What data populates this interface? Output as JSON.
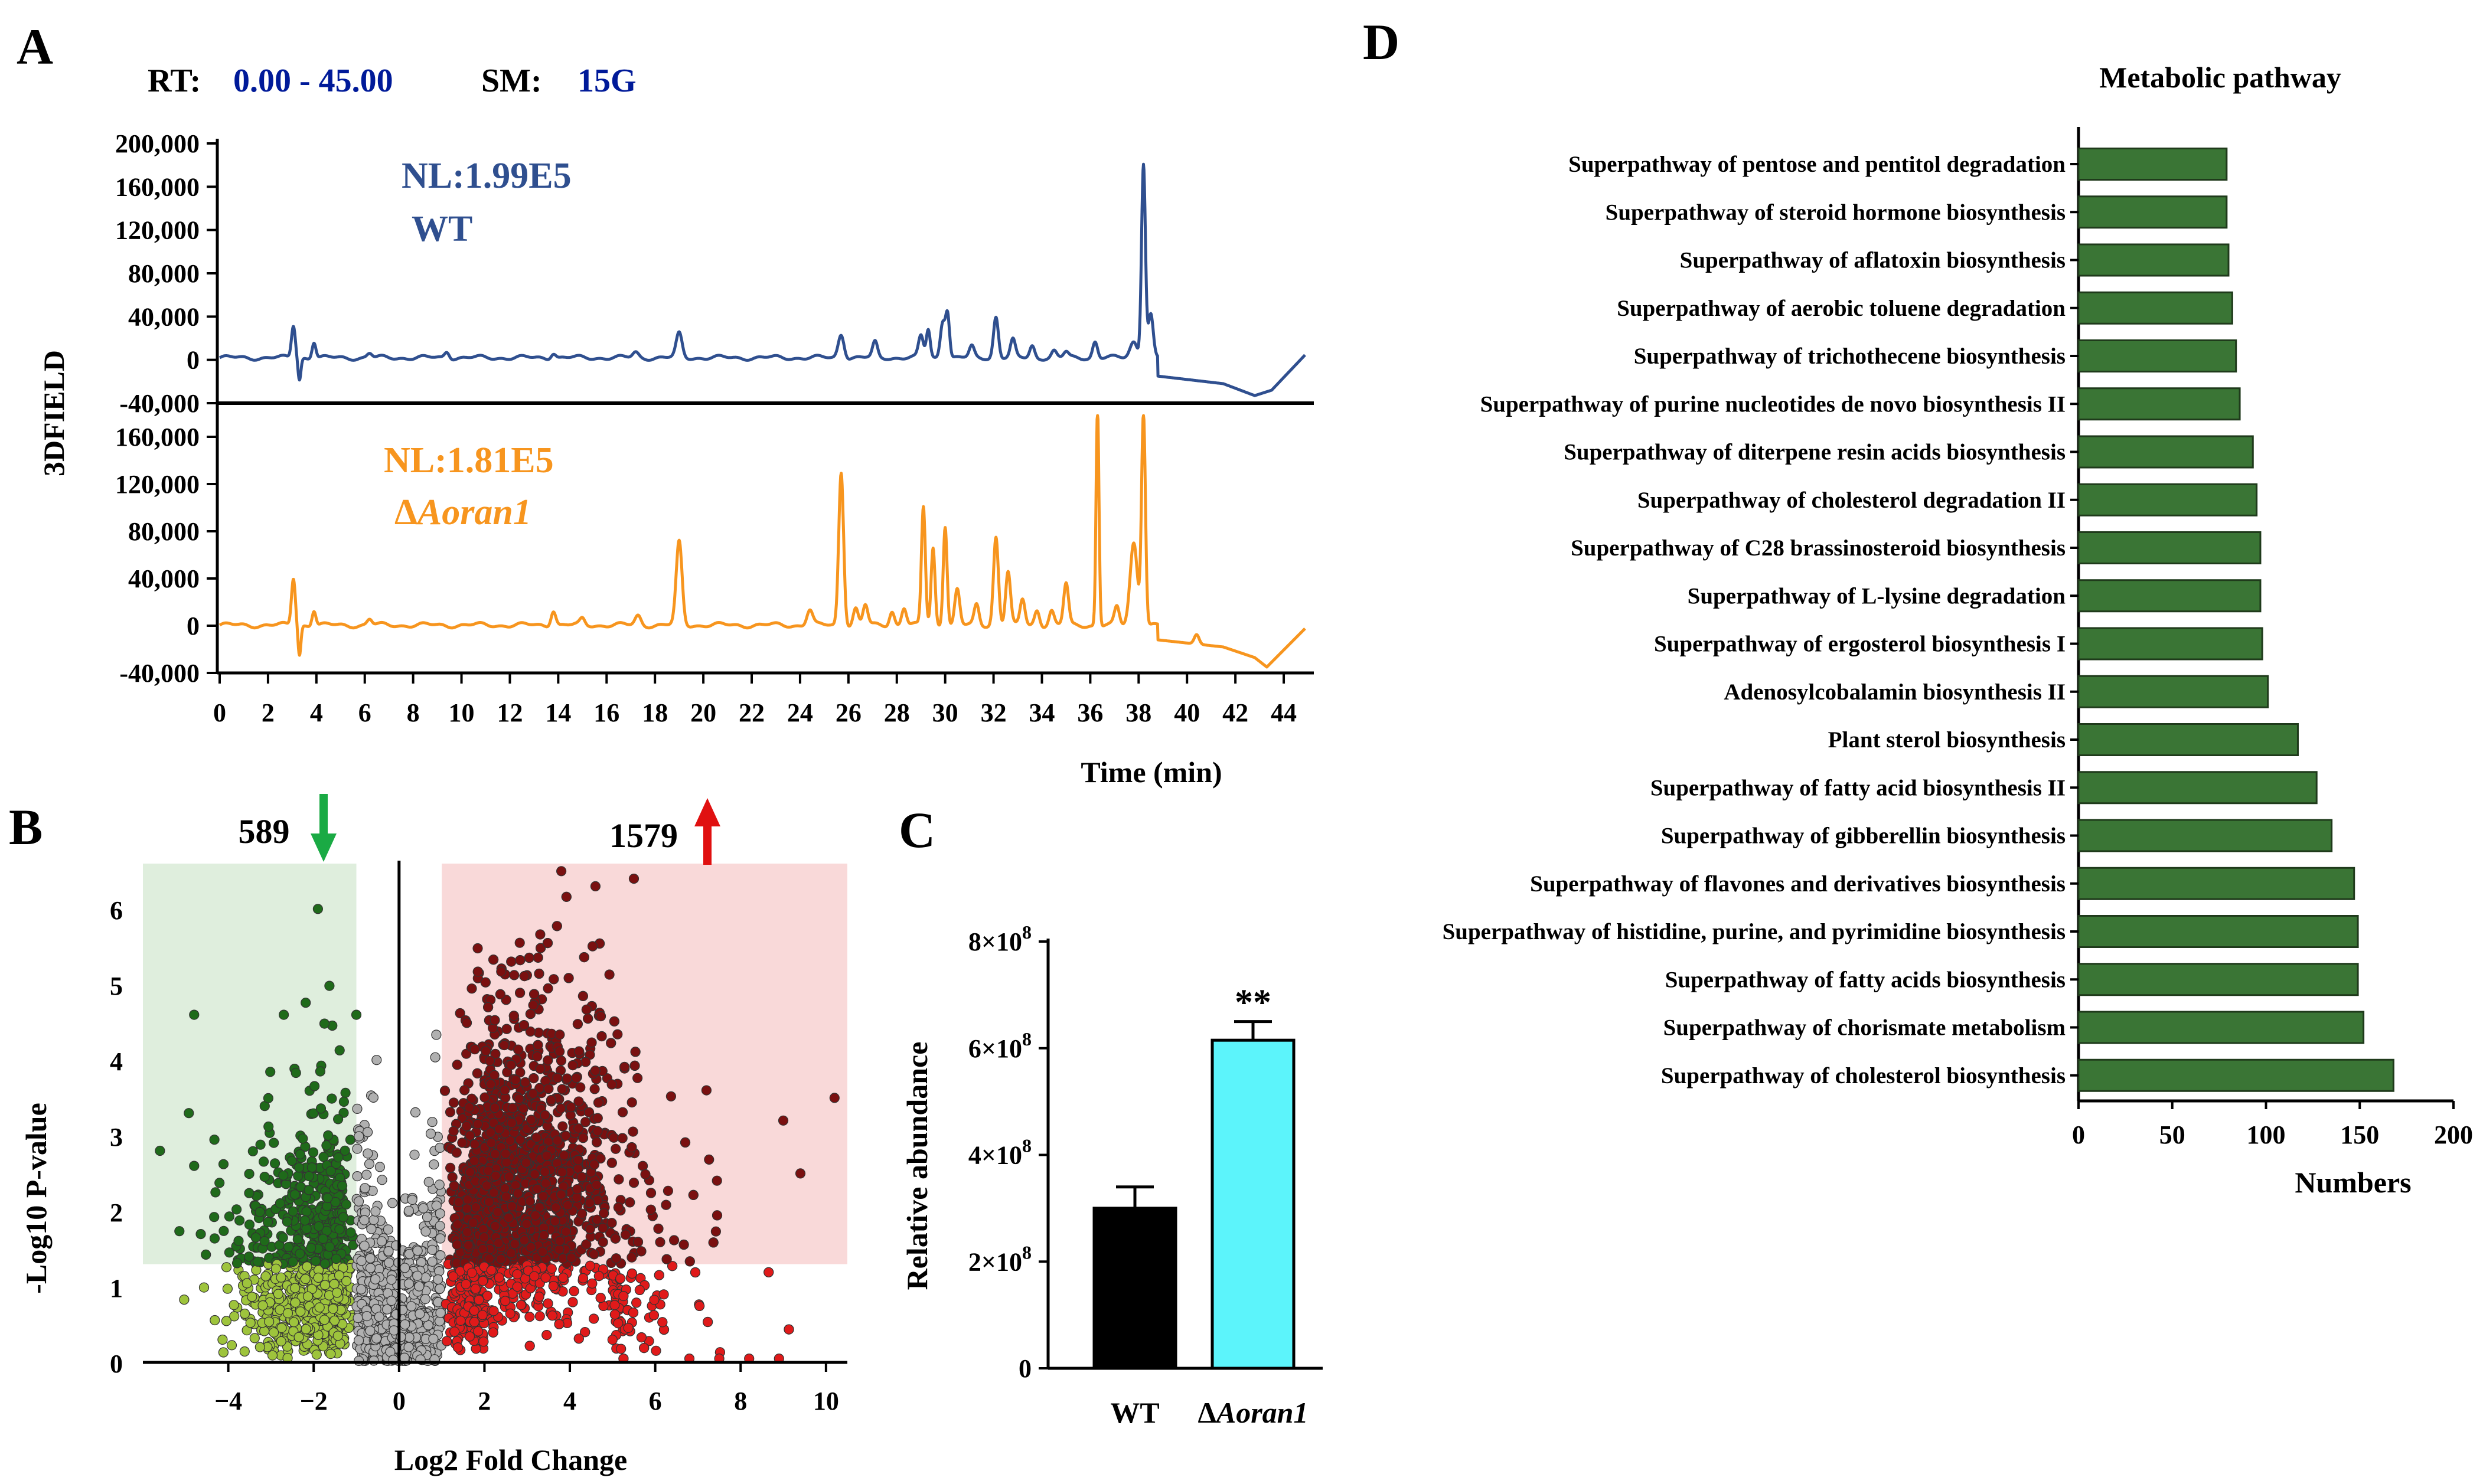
{
  "panel_labels": {
    "a": "A",
    "b": "B",
    "c": "C",
    "d": "D"
  },
  "header": {
    "rt_label": "RT:",
    "rt_value": "0.00 - 45.00",
    "sm_label": "SM:",
    "sm_value": "15G"
  },
  "colors": {
    "wt_trace": "#2f4f8f",
    "mutant_trace": "#f7951e",
    "header_value": "#001a99",
    "up_dark": "#7a1010",
    "up_light": "#e01a1a",
    "down_dark": "#1f6a1a",
    "down_light": "#9ec43c",
    "ns": "#b0b0b0",
    "bar_wt": "#000000",
    "bar_mut": "#5cf4fb",
    "pathway_bar": "#3a7535",
    "up_zone": "#f9d9d9",
    "down_zone": "#dfeedd"
  },
  "chart_data": [
    {
      "id": "A",
      "type": "line",
      "ylabel": "3DFIELD",
      "xlabel": "Time (min)",
      "xlim": [
        0,
        45
      ],
      "xticks": [
        0,
        2,
        4,
        6,
        8,
        10,
        12,
        14,
        16,
        18,
        20,
        22,
        24,
        26,
        28,
        30,
        32,
        34,
        36,
        38,
        40,
        42,
        44
      ],
      "series": [
        {
          "name": "WT",
          "nl_label": "NL:1.99E5",
          "sample_label": "WT",
          "ylim": [
            -40000,
            200000
          ],
          "yticks": [
            200000,
            160000,
            120000,
            80000,
            40000,
            0,
            -40000
          ],
          "ytick_labels": [
            "200,000",
            "160,000",
            "120,000",
            "80,000",
            "40,000",
            "0",
            "-40,000"
          ],
          "baseline": 2000,
          "peaks": [
            [
              3.05,
              30000,
              0.08
            ],
            [
              3.3,
              -20000,
              0.06
            ],
            [
              3.9,
              15000,
              0.08
            ],
            [
              6.2,
              4000,
              0.1
            ],
            [
              9.4,
              6000,
              0.1
            ],
            [
              13.8,
              5000,
              0.1
            ],
            [
              17.2,
              5000,
              0.12
            ],
            [
              19.0,
              22000,
              0.12
            ],
            [
              25.7,
              22000,
              0.12
            ],
            [
              27.1,
              14000,
              0.1
            ],
            [
              29.0,
              20000,
              0.1
            ],
            [
              29.3,
              26000,
              0.08
            ],
            [
              29.9,
              34000,
              0.1
            ],
            [
              30.1,
              40000,
              0.08
            ],
            [
              31.1,
              10000,
              0.1
            ],
            [
              32.1,
              38000,
              0.1
            ],
            [
              32.8,
              16000,
              0.1
            ],
            [
              33.6,
              11000,
              0.1
            ],
            [
              34.5,
              6000,
              0.1
            ],
            [
              35.0,
              5000,
              0.1
            ],
            [
              36.2,
              15000,
              0.1
            ],
            [
              37.8,
              15000,
              0.15
            ],
            [
              38.2,
              180000,
              0.08
            ],
            [
              38.5,
              40000,
              0.1
            ]
          ],
          "tail": [
            [
              38.8,
              -15000
            ],
            [
              41.5,
              -22000
            ],
            [
              42.8,
              -33000
            ],
            [
              43.5,
              -28000
            ],
            [
              44.9,
              5000
            ]
          ]
        },
        {
          "name": "Δ Aoran1",
          "nl_label": "NL:1.81E5",
          "sample_prefix": "Δ",
          "sample_label": "Aoran1",
          "ylim": [
            -40000,
            180000
          ],
          "yticks": [
            160000,
            120000,
            80000,
            40000,
            0,
            -40000
          ],
          "ytick_labels": [
            "160,000",
            "120,000",
            "80,000",
            "40,000",
            "0",
            "-40,000"
          ],
          "baseline": 500,
          "peaks": [
            [
              3.05,
              40000,
              0.08
            ],
            [
              3.3,
              -25000,
              0.06
            ],
            [
              3.9,
              13000,
              0.08
            ],
            [
              6.2,
              5000,
              0.1
            ],
            [
              13.8,
              13000,
              0.1
            ],
            [
              15.0,
              5000,
              0.1
            ],
            [
              17.3,
              8000,
              0.12
            ],
            [
              19.0,
              70000,
              0.12
            ],
            [
              24.4,
              13000,
              0.12
            ],
            [
              25.7,
              130000,
              0.1
            ],
            [
              26.3,
              14000,
              0.1
            ],
            [
              26.7,
              17000,
              0.1
            ],
            [
              27.8,
              12000,
              0.1
            ],
            [
              28.3,
              15000,
              0.1
            ],
            [
              29.1,
              100000,
              0.08
            ],
            [
              29.5,
              65000,
              0.08
            ],
            [
              30.0,
              85000,
              0.08
            ],
            [
              30.5,
              30000,
              0.1
            ],
            [
              31.3,
              17000,
              0.1
            ],
            [
              32.1,
              75000,
              0.1
            ],
            [
              32.6,
              45000,
              0.1
            ],
            [
              33.2,
              22000,
              0.1
            ],
            [
              33.8,
              13000,
              0.1
            ],
            [
              34.4,
              12000,
              0.1
            ],
            [
              35.0,
              35000,
              0.1
            ],
            [
              36.3,
              185000,
              0.06
            ],
            [
              37.1,
              15000,
              0.1
            ],
            [
              37.8,
              70000,
              0.15
            ],
            [
              38.2,
              180000,
              0.08
            ],
            [
              40.4,
              8000,
              0.1
            ]
          ],
          "tail": [
            [
              38.8,
              -12000
            ],
            [
              41.5,
              -18000
            ],
            [
              42.8,
              -27000
            ],
            [
              43.3,
              -35000
            ],
            [
              44.9,
              -2000
            ]
          ]
        }
      ]
    },
    {
      "id": "B",
      "type": "scatter",
      "title": "",
      "xlabel": "Log2 Fold Change",
      "ylabel": "-Log10 P-value",
      "xlim": [
        -6,
        10.5
      ],
      "ylim": [
        0,
        6.6
      ],
      "xticks": [
        -4,
        -2,
        0,
        2,
        4,
        6,
        8,
        10
      ],
      "yticks": [
        0,
        1,
        2,
        3,
        4,
        5,
        6
      ],
      "down_count": "589",
      "up_count": "1579",
      "fc_threshold": 1,
      "p_threshold": 1.3,
      "outliers": [
        [
          -1.9,
          6.0
        ],
        [
          -2.7,
          4.6
        ],
        [
          -4.8,
          4.6
        ],
        [
          -1.0,
          4.6
        ],
        [
          -5.6,
          2.8
        ],
        [
          -4.8,
          2.6
        ],
        [
          7.2,
          3.6
        ],
        [
          9.0,
          3.2
        ],
        [
          10.2,
          3.5
        ],
        [
          9.4,
          2.5
        ],
        [
          5.5,
          6.4
        ],
        [
          4.6,
          6.3
        ],
        [
          3.8,
          6.5
        ],
        [
          6.8,
          0.05
        ],
        [
          7.5,
          0.05
        ],
        [
          8.2,
          0.05
        ],
        [
          8.9,
          0.05
        ],
        [
          5.0,
          0.3
        ],
        [
          6.2,
          0.9
        ]
      ]
    },
    {
      "id": "C",
      "type": "bar",
      "categories": [
        "WT",
        "ΔAoran1"
      ],
      "category_prefix": [
        "",
        "Δ"
      ],
      "category_names": [
        "WT",
        "Aoran1"
      ],
      "values": [
        300000000,
        615000000
      ],
      "errors": [
        40000000,
        35000000
      ],
      "significance": [
        "",
        "**"
      ],
      "ylabel": "Relative abundance",
      "ylim": [
        0,
        800000000
      ],
      "yticks": [
        0,
        200000000,
        400000000,
        600000000,
        800000000
      ],
      "ytick_mantissa": [
        "0",
        "2×10",
        "4×10",
        "6×10",
        "8×10"
      ],
      "ytick_exponent": [
        "",
        "8",
        "8",
        "8",
        "8"
      ]
    },
    {
      "id": "D",
      "type": "bar",
      "orientation": "horizontal",
      "title": "Metabolic pathway",
      "xlabel": "Numbers",
      "xlim": [
        0,
        200
      ],
      "xticks": [
        0,
        50,
        100,
        150,
        200
      ],
      "categories": [
        "Superpathway of pentose and pentitol degradation",
        "Superpathway of steroid hormone biosynthesis",
        "Superpathway of aflatoxin biosynthesis",
        "Superpathway of aerobic toluene degradation",
        "Superpathway of trichothecene biosynthesis",
        "Superpathway of purine nucleotides de novo biosynthesis II",
        "Superpathway of diterpene resin acids biosynthesis",
        "Superpathway of cholesterol degradation II",
        "Superpathway of C28 brassinosteroid biosynthesis",
        "Superpathway of L-lysine degradation",
        "Superpathway of ergosterol biosynthesis I",
        "Adenosylcobalamin biosynthesis II",
        "Plant sterol biosynthesis",
        "Superpathway of fatty acid biosynthesis II",
        "Superpathway of gibberellin biosynthesis",
        "Superpathway of flavones and derivatives biosynthesis",
        "Superpathway of histidine, purine, and pyrimidine biosynthesis",
        "Superpathway of fatty acids biosynthesis",
        "Superpathway of chorismate metabolism",
        "Superpathway of cholesterol biosynthesis"
      ],
      "values": [
        79,
        79,
        80,
        82,
        84,
        86,
        93,
        95,
        97,
        97,
        98,
        101,
        117,
        127,
        135,
        147,
        149,
        149,
        152,
        168
      ]
    }
  ]
}
